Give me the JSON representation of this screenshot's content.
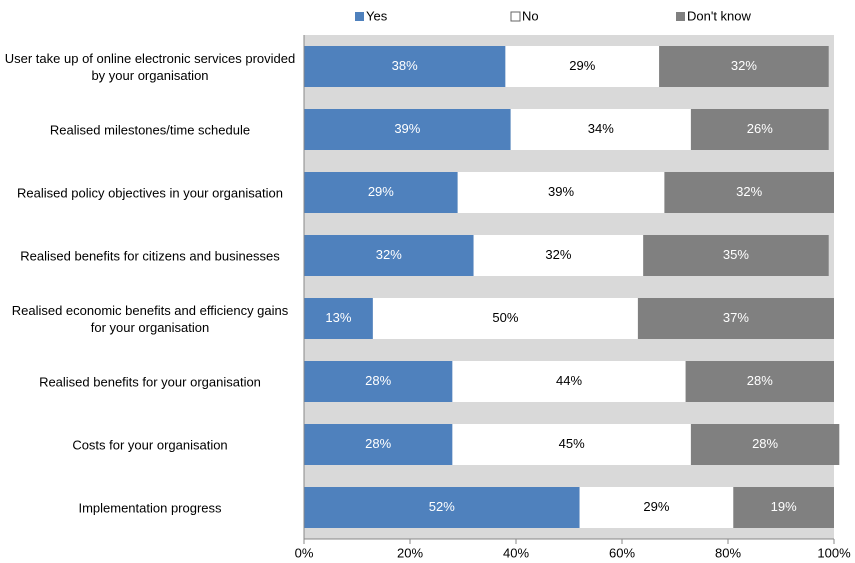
{
  "chart_data": {
    "type": "stacked_barh",
    "categories": [
      "User take up of online electronic services provided by your organisation",
      "Realised milestones/time schedule",
      "Realised policy objectives in your organisation",
      "Realised benefits for citizens and businesses",
      "Realised economic benefits and efficiency gains for your organisation",
      "Realised benefits for your organisation",
      "Costs for your organisation",
      "Implementation progress"
    ],
    "series": [
      {
        "name": "Yes",
        "color": "#4f81bd",
        "values": [
          38,
          39,
          29,
          32,
          13,
          28,
          28,
          52
        ],
        "value_labels": [
          "38%",
          "39%",
          "29%",
          "32%",
          "13%",
          "28%",
          "28%",
          "52%"
        ]
      },
      {
        "name": "No",
        "color": "#ffffff",
        "values": [
          29,
          34,
          39,
          32,
          50,
          44,
          45,
          29
        ],
        "value_labels": [
          "29%",
          "34%",
          "39%",
          "32%",
          "50%",
          "44%",
          "45%",
          "29%"
        ]
      },
      {
        "name": "Don't know",
        "color": "#808080",
        "values": [
          32,
          26,
          32,
          35,
          37,
          28,
          28,
          19
        ],
        "value_labels": [
          "32%",
          "26%",
          "32%",
          "35%",
          "37%",
          "28%",
          "28%",
          "19%"
        ]
      }
    ],
    "xlim": [
      0,
      100
    ],
    "xticks": [
      {
        "value": 0,
        "label": "0%"
      },
      {
        "value": 20,
        "label": "20%"
      },
      {
        "value": 40,
        "label": "40%"
      },
      {
        "value": 60,
        "label": "60%"
      },
      {
        "value": 80,
        "label": "80%"
      },
      {
        "value": 100,
        "label": "100%"
      }
    ],
    "legend": "top"
  }
}
